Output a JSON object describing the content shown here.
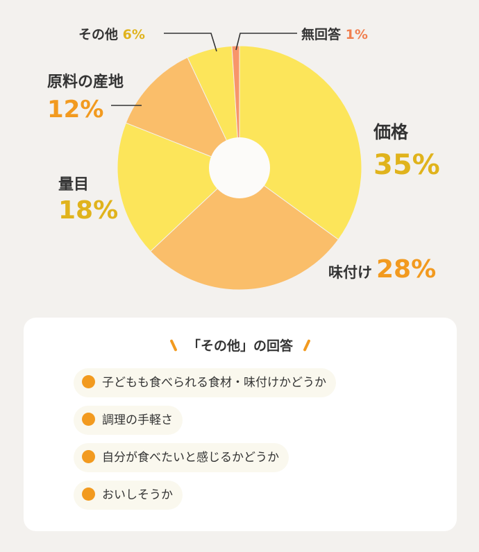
{
  "chart_data": {
    "type": "pie",
    "categories": [
      "価格",
      "味付け",
      "量目",
      "原料の産地",
      "その他",
      "無回答"
    ],
    "values": [
      35,
      28,
      18,
      12,
      6,
      1
    ],
    "unit": "%",
    "colors": [
      "#fce55a",
      "#fabe6a",
      "#fce55a",
      "#fabe6a",
      "#fce55a",
      "#f8956a"
    ],
    "label_colors": {
      "価格": "#e0b31c",
      "味付け": "#f29a1f",
      "量目": "#e0b31c",
      "原料の産地": "#f29a1f",
      "その他": "#e0b31c",
      "無回答": "#f07f4f"
    },
    "title": "",
    "xlabel": "",
    "ylabel": "",
    "legend": "none"
  },
  "other_answers": {
    "title": "「その他」の回答",
    "items": [
      "子どもも食べられる食材・味付けかどうか",
      "調理の手軽さ",
      "自分が食べたいと感じるかどうか",
      "おいしそうか"
    ]
  }
}
